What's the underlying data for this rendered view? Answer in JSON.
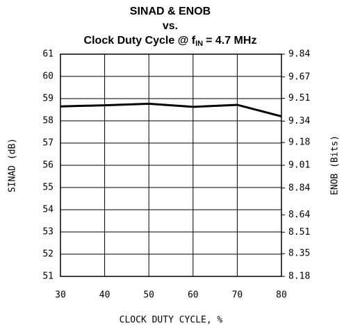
{
  "chart_data": {
    "type": "line",
    "title": [
      "SINAD & ENOB",
      "vs."
    ],
    "title_line3": [
      "Clock Duty Cycle @ f",
      "IN",
      "= 4.7 MHz"
    ],
    "xlabel": "CLOCK DUTY CYCLE, %",
    "ylabel": "SINAD (dB)",
    "y2label": "ENOB (Bits)",
    "x": [
      30,
      40,
      50,
      60,
      70,
      80
    ],
    "series": [
      {
        "name": "SINAD",
        "color": "#000000",
        "values": [
          58.65,
          58.7,
          58.77,
          58.63,
          58.72,
          58.2
        ]
      }
    ],
    "xlim": [
      30,
      80
    ],
    "xticks": [
      30,
      40,
      50,
      60,
      70,
      80
    ],
    "ylim": [
      51,
      61
    ],
    "yticks": [
      51,
      52,
      53,
      54,
      55,
      56,
      57,
      58,
      59,
      60,
      61
    ],
    "y2lim": [
      8.18,
      9.84
    ],
    "y2ticks": [
      8.18,
      8.35,
      8.51,
      8.64,
      8.84,
      9.01,
      9.18,
      9.34,
      9.51,
      9.67,
      9.84
    ],
    "grid": true
  }
}
